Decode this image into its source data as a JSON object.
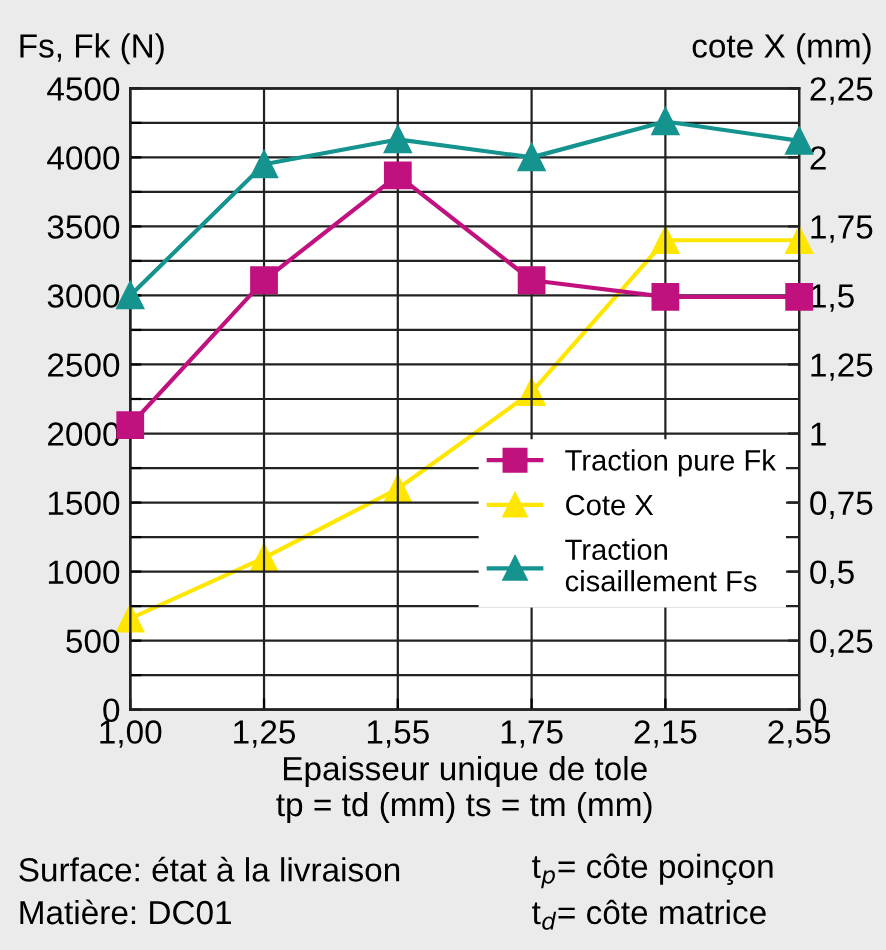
{
  "chart_data": {
    "type": "line",
    "categories": [
      "1,00",
      "1,25",
      "1,55",
      "1,75",
      "2,15",
      "2,55"
    ],
    "series": [
      {
        "name": "Traction pure Fk",
        "color": "#c0117f",
        "marker": "square",
        "values": [
          2060,
          3110,
          3870,
          3110,
          2990,
          2990
        ]
      },
      {
        "name": "Cote X",
        "color": "#ffe600",
        "marker": "triangle",
        "axis": "y2",
        "values": [
          0.33,
          0.55,
          0.8,
          1.15,
          1.7,
          1.7
        ]
      },
      {
        "name": "Traction\ncisaillement Fs",
        "color": "#14938f",
        "marker": "triangle",
        "values": [
          3000,
          3950,
          4130,
          4000,
          4260,
          4120
        ]
      }
    ],
    "ylabel": "Fs, Fk (N)",
    "y2label": "cote X (mm)",
    "xlabel": "Epaisseur unique de tole\ntp = td (mm) ts = tm (mm)",
    "ylim": [
      0,
      4500
    ],
    "yticks": [
      0,
      {
        "value": 250,
        "label": null
      },
      500,
      {
        "value": 750,
        "label": null
      },
      1000,
      {
        "value": 1250,
        "label": null
      },
      1500,
      {
        "value": 1750,
        "label": null
      },
      2000,
      {
        "value": 2250,
        "label": null
      },
      2500,
      {
        "value": 2750,
        "label": null
      },
      3000,
      {
        "value": 3250,
        "label": null
      },
      3500,
      {
        "value": 3750,
        "label": null
      },
      4000,
      {
        "value": 4250,
        "label": null
      },
      4500
    ],
    "y2lim": [
      0,
      2.25
    ],
    "y2ticks": [
      0,
      {
        "value": 0.25,
        "label": "0,25"
      },
      {
        "value": 0.5,
        "label": "0,5"
      },
      {
        "value": 0.75,
        "label": "0,75"
      },
      1,
      {
        "value": 1.25,
        "label": "1,25"
      },
      {
        "value": 1.5,
        "label": "1,5"
      },
      {
        "value": 1.75,
        "label": "1,75"
      },
      2,
      {
        "value": 2.25,
        "label": "2,25"
      }
    ],
    "grid": true,
    "legend": "center right",
    "line_style": "solid",
    "annotations": [
      "Surface: état à la livraison",
      "Matière: DC01",
      "t$_{p}$= côte poinçon",
      "t$_{d}$= côte matrice"
    ]
  }
}
